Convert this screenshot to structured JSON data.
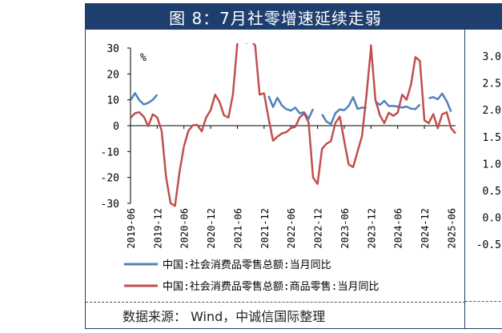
{
  "panel": {
    "title": "图 8：7月社零增速延续走弱",
    "source": "数据来源： Wind，中诚信国际整理"
  },
  "right_panel": {
    "tick_labels": [
      "3.0",
      "2.5",
      "2.0",
      "1.5",
      "1.0",
      "0.5",
      "0.0",
      "-0.5"
    ]
  },
  "colors": {
    "header": "#1e3f6e",
    "series_blue": "#4f81bd",
    "series_red": "#c0504d"
  },
  "chart_data": {
    "type": "line",
    "ylabel": "%",
    "ylim": [
      -30,
      30
    ],
    "yticks": [
      30,
      20,
      10,
      0,
      -10,
      -20,
      -30
    ],
    "xlim": [
      "2019-06",
      "2025-07"
    ],
    "xticks": [
      "2019-06",
      "2019-12",
      "2020-06",
      "2020-12",
      "2021-06",
      "2021-12",
      "2022-06",
      "2022-12",
      "2023-06",
      "2023-12",
      "2024-06",
      "2024-12",
      "2025-06"
    ],
    "legend_position": "bottom",
    "series": [
      {
        "name": "中国:社会消费品零售总额:当月同比",
        "color": "#4f81bd",
        "points": [
          [
            "2019-06",
            9.8
          ],
          [
            "2019-07",
            12.6
          ],
          [
            "2019-08",
            9.8
          ],
          [
            "2019-09",
            8.2
          ],
          [
            "2019-10",
            8.8
          ],
          [
            "2019-11",
            10.0
          ],
          [
            "2019-12",
            12.0
          ],
          [
            "2022-01",
            11.5
          ],
          [
            "2022-02",
            7.2
          ],
          [
            "2022-03",
            10.8
          ],
          [
            "2022-04",
            7.8
          ],
          [
            "2022-05",
            6.4
          ],
          [
            "2022-06",
            5.8
          ],
          [
            "2022-07",
            7.0
          ],
          [
            "2022-08",
            4.8
          ],
          [
            "2022-09",
            5.2
          ],
          [
            "2022-10",
            2.7
          ],
          [
            "2022-11",
            6.5
          ],
          [
            "2023-01",
            4.4
          ],
          [
            "2023-02",
            1.6
          ],
          [
            "2023-03",
            0.6
          ],
          [
            "2023-04",
            4.8
          ],
          [
            "2023-05",
            6.3
          ],
          [
            "2023-06",
            6.0
          ],
          [
            "2023-07",
            7.6
          ],
          [
            "2023-08",
            11.0
          ],
          [
            "2023-09",
            6.5
          ],
          [
            "2023-10",
            7.0
          ],
          [
            "2023-11",
            6.8
          ],
          [
            "2024-01",
            9.4
          ],
          [
            "2024-02",
            8.0
          ],
          [
            "2024-03",
            9.6
          ],
          [
            "2024-04",
            7.6
          ],
          [
            "2024-05",
            7.6
          ],
          [
            "2024-06",
            7.4
          ],
          [
            "2024-07",
            7.0
          ],
          [
            "2024-08",
            7.4
          ],
          [
            "2024-09",
            6.6
          ],
          [
            "2024-10",
            6.4
          ],
          [
            "2024-11",
            8.2
          ],
          [
            "2025-01",
            10.6
          ],
          [
            "2025-02",
            11.0
          ],
          [
            "2025-03",
            10.2
          ],
          [
            "2025-04",
            12.4
          ],
          [
            "2025-05",
            9.5
          ],
          [
            "2025-06",
            5.4
          ]
        ]
      },
      {
        "name": "中国:社会消费品零售总额:商品零售:当月同比",
        "color": "#c0504d",
        "points": [
          [
            "2019-06",
            3.0
          ],
          [
            "2019-07",
            4.8
          ],
          [
            "2019-08",
            5.2
          ],
          [
            "2019-09",
            3.4
          ],
          [
            "2019-10",
            -0.2
          ],
          [
            "2019-11",
            4.4
          ],
          [
            "2019-12",
            3.2
          ],
          [
            "2020-01",
            -2.0
          ],
          [
            "2020-02",
            -20.0
          ],
          [
            "2020-03",
            -30.0
          ],
          [
            "2020-04",
            -31.0
          ],
          [
            "2020-05",
            -18.0
          ],
          [
            "2020-06",
            -8.0
          ],
          [
            "2020-07",
            -2.0
          ],
          [
            "2020-08",
            0.2
          ],
          [
            "2020-09",
            0.3
          ],
          [
            "2020-10",
            -2.2
          ],
          [
            "2020-11",
            3.2
          ],
          [
            "2020-12",
            6.0
          ],
          [
            "2021-01",
            12.0
          ],
          [
            "2021-02",
            9.2
          ],
          [
            "2021-03",
            4.0
          ],
          [
            "2021-04",
            3.2
          ],
          [
            "2021-05",
            12.0
          ],
          [
            "2021-06",
            32.0
          ],
          [
            "2021-07",
            36.0
          ],
          [
            "2021-08",
            32.0
          ],
          [
            "2021-09",
            33.0
          ],
          [
            "2021-10",
            31.0
          ],
          [
            "2021-11",
            12.0
          ],
          [
            "2021-12",
            12.5
          ],
          [
            "2022-01",
            3.0
          ],
          [
            "2022-02",
            -5.8
          ],
          [
            "2022-03",
            -4.2
          ],
          [
            "2022-04",
            -3.0
          ],
          [
            "2022-05",
            -2.5
          ],
          [
            "2022-06",
            -1.0
          ],
          [
            "2022-07",
            -0.4
          ],
          [
            "2022-08",
            3.2
          ],
          [
            "2022-09",
            4.8
          ],
          [
            "2022-10",
            1.2
          ],
          [
            "2022-11",
            -20.0
          ],
          [
            "2022-12",
            -22.5
          ],
          [
            "2023-01",
            -9.0
          ],
          [
            "2023-02",
            -7.0
          ],
          [
            "2023-03",
            -6.0
          ],
          [
            "2023-04",
            1.0
          ],
          [
            "2023-05",
            3.5
          ],
          [
            "2023-06",
            -6.0
          ],
          [
            "2023-07",
            -15.0
          ],
          [
            "2023-08",
            -16.0
          ],
          [
            "2023-09",
            -10.0
          ],
          [
            "2023-10",
            -4.0
          ],
          [
            "2023-11",
            12.0
          ],
          [
            "2023-12",
            30.0
          ],
          [
            "2023-12",
            31.0
          ],
          [
            "2024-01",
            10.0
          ],
          [
            "2024-02",
            4.0
          ],
          [
            "2024-03",
            1.0
          ],
          [
            "2024-04",
            5.0
          ],
          [
            "2024-05",
            3.8
          ],
          [
            "2024-06",
            5.0
          ],
          [
            "2024-07",
            12.0
          ],
          [
            "2024-08",
            10.0
          ],
          [
            "2024-09",
            16.0
          ],
          [
            "2024-10",
            26.5
          ],
          [
            "2024-11",
            25.0
          ],
          [
            "2024-12",
            2.0
          ],
          [
            "2025-01",
            1.0
          ],
          [
            "2025-02",
            4.5
          ],
          [
            "2025-03",
            -1.0
          ],
          [
            "2025-04",
            4.4
          ],
          [
            "2025-05",
            5.2
          ],
          [
            "2025-06",
            -1.0
          ],
          [
            "2025-07",
            -3.0
          ]
        ]
      }
    ]
  }
}
